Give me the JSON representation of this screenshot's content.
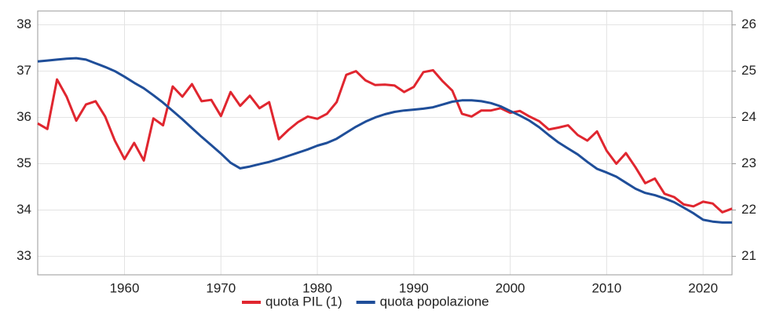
{
  "chart_data": {
    "type": "line",
    "x": [
      1951,
      1952,
      1953,
      1954,
      1955,
      1956,
      1957,
      1958,
      1959,
      1960,
      1961,
      1962,
      1963,
      1964,
      1965,
      1966,
      1967,
      1968,
      1969,
      1970,
      1971,
      1972,
      1973,
      1974,
      1975,
      1976,
      1977,
      1978,
      1979,
      1980,
      1981,
      1982,
      1983,
      1984,
      1985,
      1986,
      1987,
      1988,
      1989,
      1990,
      1991,
      1992,
      1993,
      1994,
      1995,
      1996,
      1997,
      1998,
      1999,
      2000,
      2001,
      2002,
      2003,
      2004,
      2005,
      2006,
      2007,
      2008,
      2009,
      2010,
      2011,
      2012,
      2013,
      2014,
      2015,
      2016,
      2017,
      2018,
      2019,
      2020,
      2021,
      2022,
      2023
    ],
    "series": [
      {
        "name": "quota PIL (1)",
        "color": "#e0262f",
        "values": [
          35.87,
          35.75,
          36.82,
          36.45,
          35.93,
          36.28,
          36.35,
          36.02,
          35.5,
          35.1,
          35.45,
          35.07,
          35.98,
          35.83,
          36.67,
          36.45,
          36.72,
          36.35,
          36.38,
          36.03,
          36.55,
          36.25,
          36.47,
          36.2,
          36.33,
          35.53,
          35.73,
          35.9,
          36.02,
          35.97,
          36.08,
          36.33,
          36.92,
          37.0,
          36.8,
          36.7,
          36.71,
          36.69,
          36.55,
          36.66,
          36.98,
          37.02,
          36.78,
          36.58,
          36.08,
          36.02,
          36.15,
          36.15,
          36.2,
          36.1,
          36.14,
          36.02,
          35.92,
          35.74,
          35.78,
          35.83,
          35.62,
          35.5,
          35.7,
          35.28,
          35.0,
          35.23,
          34.92,
          34.58,
          34.68,
          34.35,
          34.28,
          34.12,
          34.08,
          34.18,
          34.14,
          33.95,
          34.03
        ]
      },
      {
        "name": "quota popolazione",
        "color": "#1f4e99",
        "axis": "y2",
        "values": [
          25.21,
          25.23,
          25.25,
          25.27,
          25.28,
          25.25,
          25.17,
          25.09,
          25.0,
          24.88,
          24.75,
          24.63,
          24.48,
          24.32,
          24.14,
          23.96,
          23.77,
          23.58,
          23.4,
          23.22,
          23.02,
          22.9,
          22.94,
          22.99,
          23.04,
          23.1,
          23.17,
          23.24,
          23.31,
          23.39,
          23.45,
          23.54,
          23.67,
          23.8,
          23.91,
          24.0,
          24.07,
          24.12,
          24.15,
          24.17,
          24.19,
          24.22,
          24.28,
          24.34,
          24.37,
          24.37,
          24.35,
          24.31,
          24.24,
          24.14,
          24.04,
          23.93,
          23.79,
          23.62,
          23.46,
          23.33,
          23.2,
          23.04,
          22.89,
          22.81,
          22.72,
          22.59,
          22.46,
          22.37,
          22.32,
          22.25,
          22.17,
          22.05,
          21.93,
          21.79,
          21.75,
          21.73,
          21.73
        ]
      }
    ],
    "xlim": [
      1951,
      2023
    ],
    "xticks": [
      1960,
      1970,
      1980,
      1990,
      2000,
      2010,
      2020
    ],
    "ylim": [
      32.6,
      38.3
    ],
    "yticks": [
      33,
      34,
      35,
      36,
      37,
      38
    ],
    "y2lim": [
      20.6,
      26.3
    ],
    "y2ticks": [
      21,
      22,
      23,
      24,
      25,
      26
    ],
    "grid": true,
    "legend": "bottom"
  }
}
